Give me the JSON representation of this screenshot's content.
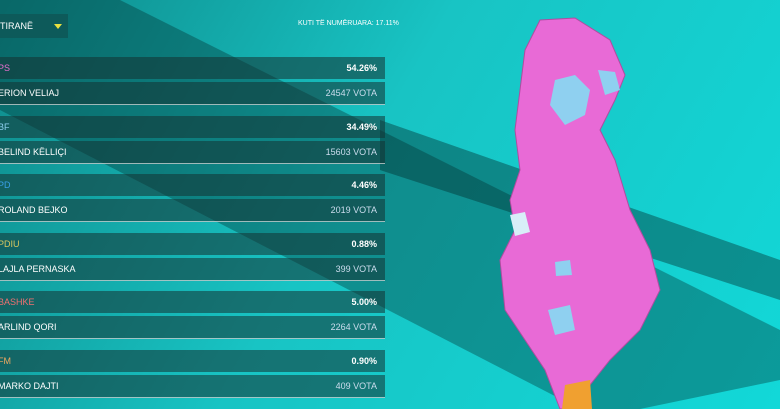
{
  "header": {
    "city": "TIRANË",
    "counted": "KUTI TË NUMËRUARA: 17.11%"
  },
  "results": [
    {
      "party": "PS",
      "color": "#e76fd0",
      "percent": "54.26%",
      "candidate": "ERION VELIAJ",
      "votes": "24547 VOTA"
    },
    {
      "party": "BF",
      "color": "#8fd0f0",
      "percent": "34.49%",
      "candidate": "BELIND KËLLIÇI",
      "votes": "15603 VOTA"
    },
    {
      "party": "PD",
      "color": "#3aa0e8",
      "percent": "4.46%",
      "candidate": "ROLAND BEJKO",
      "votes": "2019 VOTA"
    },
    {
      "party": "PDIU",
      "color": "#d8c860",
      "percent": "0.88%",
      "candidate": "LAJLA PERNASKA",
      "votes": "399 VOTA"
    },
    {
      "party": "BASHKE",
      "color": "#f07070",
      "percent": "5.00%",
      "candidate": "ARLIND QORI",
      "votes": "2264 VOTA"
    },
    {
      "party": "FM",
      "color": "#f0a860",
      "percent": "0.90%",
      "candidate": "MARKO DAJTI",
      "votes": "409 VOTA"
    }
  ]
}
